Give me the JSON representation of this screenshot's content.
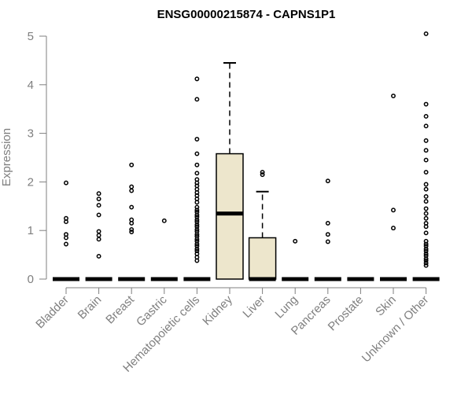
{
  "chart_data": {
    "type": "box",
    "title": "ENSG00000215874 - CAPNS1P1",
    "xlabel": "",
    "ylabel": "Expression",
    "ylim": [
      0,
      5
    ],
    "yticks": [
      0,
      1,
      2,
      3,
      4,
      5
    ],
    "categories": [
      "Bladder",
      "Brain",
      "Breast",
      "Gastric",
      "Hematopoietic cells",
      "Kidney",
      "Liver",
      "Lung",
      "Pancreas",
      "Prostate",
      "Skin",
      "Unknown / Other"
    ],
    "boxes": [
      {
        "q1": 0,
        "median": 0,
        "q3": 0,
        "whisker_low": 0,
        "whisker_high": 0,
        "outliers": [
          0.72,
          0.85,
          0.92,
          1.18,
          1.25,
          1.98
        ]
      },
      {
        "q1": 0,
        "median": 0,
        "q3": 0,
        "whisker_low": 0,
        "whisker_high": 0,
        "outliers": [
          0.47,
          0.82,
          0.9,
          0.98,
          1.32,
          1.52,
          1.65,
          1.76
        ]
      },
      {
        "q1": 0,
        "median": 0,
        "q3": 0,
        "whisker_low": 0,
        "whisker_high": 0,
        "outliers": [
          0.97,
          1.02,
          1.15,
          1.22,
          1.48,
          1.82,
          1.9,
          2.35
        ]
      },
      {
        "q1": 0,
        "median": 0,
        "q3": 0,
        "whisker_low": 0,
        "whisker_high": 0,
        "outliers": [
          1.2
        ]
      },
      {
        "q1": 0,
        "median": 0,
        "q3": 0,
        "whisker_low": 0,
        "whisker_high": 0,
        "outliers": [
          0.38,
          0.45,
          0.52,
          0.58,
          0.62,
          0.68,
          0.72,
          0.78,
          0.82,
          0.88,
          0.92,
          0.98,
          1.02,
          1.08,
          1.12,
          1.18,
          1.22,
          1.28,
          1.32,
          1.38,
          1.42,
          1.48,
          1.58,
          1.65,
          1.72,
          1.78,
          1.85,
          1.92,
          1.98,
          2.05,
          2.18,
          2.35,
          2.58,
          2.88,
          3.7,
          4.12
        ]
      },
      {
        "q1": 0,
        "median": 1.35,
        "q3": 2.58,
        "whisker_low": 0,
        "whisker_high": 4.45,
        "outliers": []
      },
      {
        "q1": 0,
        "median": 0,
        "q3": 0.85,
        "whisker_low": 0,
        "whisker_high": 1.8,
        "outliers": [
          2.15,
          2.2
        ]
      },
      {
        "q1": 0,
        "median": 0,
        "q3": 0,
        "whisker_low": 0,
        "whisker_high": 0,
        "outliers": [
          0.78
        ]
      },
      {
        "q1": 0,
        "median": 0,
        "q3": 0,
        "whisker_low": 0,
        "whisker_high": 0,
        "outliers": [
          0.77,
          0.92,
          1.15,
          2.02
        ]
      },
      {
        "q1": 0,
        "median": 0,
        "q3": 0,
        "whisker_low": 0,
        "whisker_high": 0,
        "outliers": []
      },
      {
        "q1": 0,
        "median": 0,
        "q3": 0,
        "whisker_low": 0,
        "whisker_high": 0,
        "outliers": [
          1.05,
          1.42,
          3.77
        ]
      },
      {
        "q1": 0,
        "median": 0,
        "q3": 0,
        "whisker_low": 0,
        "whisker_high": 0,
        "outliers": [
          0.28,
          0.33,
          0.38,
          0.42,
          0.48,
          0.52,
          0.58,
          0.62,
          0.68,
          0.72,
          0.78,
          0.95,
          1.08,
          1.15,
          1.25,
          1.35,
          1.45,
          1.6,
          1.7,
          1.85,
          1.95,
          2.2,
          2.45,
          2.65,
          2.85,
          3.15,
          3.35,
          3.6,
          5.05
        ]
      }
    ],
    "box_fill": "#ede6cc",
    "box_stroke": "#000000",
    "axis_color": "#7f7f7f",
    "grid": false,
    "legend": "none"
  }
}
